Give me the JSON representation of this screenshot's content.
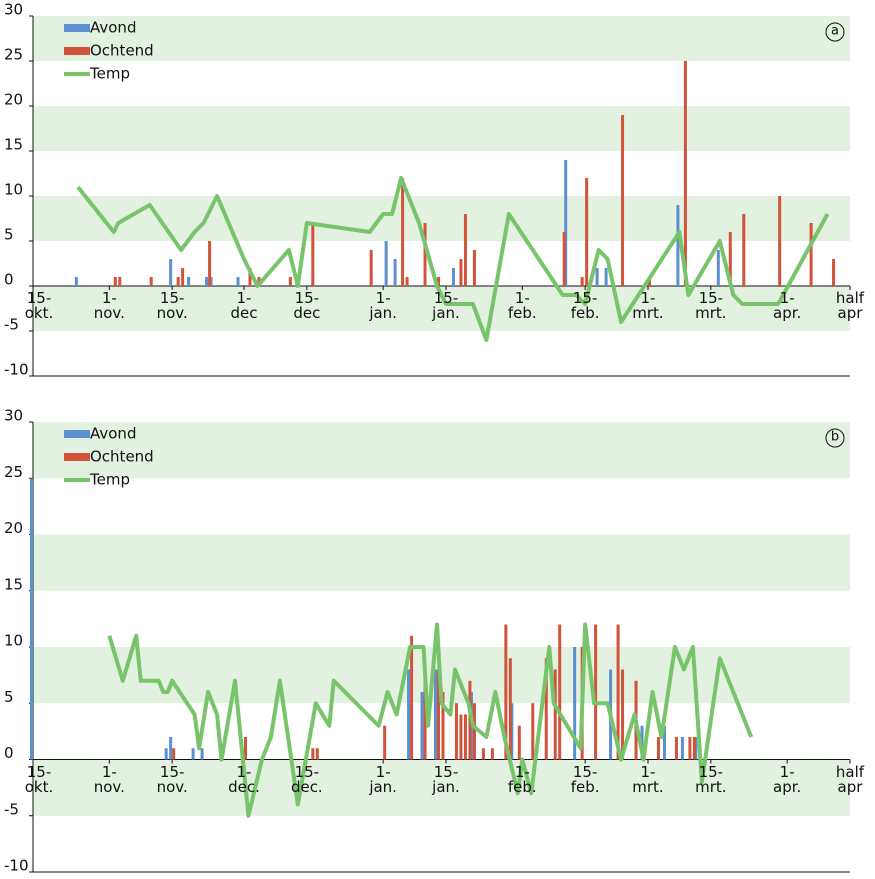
{
  "chart_data": [
    {
      "type": "bar_line",
      "label": "a",
      "xlim": [
        0,
        182
      ],
      "ylim": [
        -10,
        30
      ],
      "yticks": [
        -10,
        -5,
        0,
        5,
        10,
        15,
        20,
        25,
        30
      ],
      "bands": true,
      "legend": "upper left",
      "xticks": [
        {
          "value": 0,
          "label": "15-\nokt."
        },
        {
          "value": 17,
          "label": "1-\nnov."
        },
        {
          "value": 31,
          "label": "15-\nnov."
        },
        {
          "value": 47,
          "label": "1-\ndec"
        },
        {
          "value": 61,
          "label": "15-\ndec"
        },
        {
          "value": 78,
          "label": "1-\njan."
        },
        {
          "value": 92,
          "label": "15-\njan."
        },
        {
          "value": 109,
          "label": "1-\nfeb."
        },
        {
          "value": 123,
          "label": "15-\nfeb."
        },
        {
          "value": 137,
          "label": "1-\nmrt."
        },
        {
          "value": 151,
          "label": "15-\nmrt."
        },
        {
          "value": 168,
          "label": "1-\napr."
        },
        {
          "value": 182,
          "label": "half\napr"
        }
      ],
      "series": [
        {
          "name": "Avond",
          "type": "bar",
          "color": "#5b8fd0",
          "x": [
            10,
            31,
            35,
            39,
            40,
            46,
            79,
            81,
            94,
            119,
            126,
            128,
            144,
            153
          ],
          "values": [
            1,
            3,
            1,
            1,
            1,
            1,
            5,
            3,
            2,
            14,
            2,
            2,
            9,
            4
          ]
        },
        {
          "name": "Ochtend",
          "type": "bar",
          "color": "#d0533a",
          "x": [
            18,
            19,
            26,
            32,
            33,
            39,
            48,
            50,
            57,
            62,
            75,
            82,
            83,
            87,
            90,
            95,
            96,
            98,
            118,
            122,
            123,
            131,
            137,
            145,
            155,
            158,
            166,
            173,
            178
          ],
          "values": [
            1,
            1,
            1,
            1,
            2,
            5,
            2,
            1,
            1,
            7,
            4,
            12,
            1,
            7,
            1,
            3,
            8,
            4,
            6,
            1,
            12,
            19,
            1,
            25,
            6,
            8,
            10,
            7,
            3
          ]
        },
        {
          "name": "Temp",
          "type": "line",
          "color": "#77c46a",
          "x": [
            10,
            18,
            19,
            26,
            33,
            36,
            38,
            41,
            47,
            50,
            57,
            59,
            61,
            75,
            78,
            80,
            82,
            86,
            90,
            92,
            98,
            101,
            106,
            118,
            121,
            123,
            126,
            128,
            131,
            144,
            146,
            153,
            156,
            158,
            166,
            177
          ],
          "values": [
            11,
            6,
            7,
            9,
            4,
            6,
            7,
            10,
            3,
            0,
            4,
            0,
            7,
            6,
            8,
            8,
            12,
            7,
            0,
            -2,
            -2,
            -6,
            8,
            -1,
            -1,
            -2,
            4,
            3,
            -4,
            6,
            -1,
            5,
            -1,
            -2,
            -2,
            8
          ]
        }
      ]
    },
    {
      "type": "bar_line",
      "label": "b",
      "xlim": [
        0,
        182
      ],
      "ylim": [
        -10,
        30
      ],
      "yticks": [
        -10,
        -5,
        0,
        5,
        10,
        15,
        20,
        25,
        30
      ],
      "bands": true,
      "legend": "upper left",
      "xticks": [
        {
          "value": 0,
          "label": "15-\nokt."
        },
        {
          "value": 17,
          "label": "1-\nnov."
        },
        {
          "value": 31,
          "label": "15-\nnov."
        },
        {
          "value": 47,
          "label": "1-\ndec."
        },
        {
          "value": 61,
          "label": "15-\ndec."
        },
        {
          "value": 78,
          "label": "1-\njan."
        },
        {
          "value": 92,
          "label": "15-\njan."
        },
        {
          "value": 109,
          "label": "1-\nfeb."
        },
        {
          "value": 123,
          "label": "15-\nfeb."
        },
        {
          "value": 137,
          "label": "1-\nmrt."
        },
        {
          "value": 151,
          "label": "15-\nmrt."
        },
        {
          "value": 168,
          "label": "1-\napr."
        },
        {
          "value": 182,
          "label": "half\napr"
        }
      ],
      "series": [
        {
          "name": "Avond",
          "type": "bar",
          "color": "#5b8fd0",
          "x": [
            0,
            30,
            31,
            36,
            38,
            84,
            87,
            90,
            98,
            107,
            121,
            129,
            136,
            141,
            145,
            148
          ],
          "values": [
            25,
            1,
            2,
            1,
            1,
            8,
            6,
            8,
            6,
            5,
            10,
            8,
            3,
            3,
            2,
            2
          ]
        },
        {
          "name": "Ochtend",
          "type": "bar",
          "color": "#d0533a",
          "x": [
            31,
            47,
            62,
            63,
            78,
            84,
            87,
            90,
            91,
            94,
            95,
            96,
            97,
            98,
            100,
            102,
            105,
            106,
            108,
            111,
            114,
            116,
            117,
            122,
            125,
            130,
            131,
            134,
            139,
            143,
            146,
            147
          ],
          "values": [
            1,
            2,
            1,
            1,
            3,
            11,
            8,
            8,
            6,
            5,
            4,
            4,
            7,
            5,
            1,
            1,
            12,
            9,
            3,
            5,
            9,
            8,
            12,
            10,
            12,
            12,
            8,
            7,
            2,
            2,
            2,
            2
          ]
        },
        {
          "name": "Temp",
          "type": "line",
          "color": "#77c46a",
          "x": [
            17,
            20,
            23,
            24,
            28,
            29,
            30,
            31,
            36,
            37,
            39,
            41,
            42,
            45,
            48,
            51,
            53,
            55,
            59,
            63,
            66,
            67,
            77,
            79,
            81,
            84,
            87,
            88,
            90,
            91,
            93,
            94,
            96,
            97,
            98,
            101,
            103,
            105,
            108,
            109,
            111,
            115,
            116,
            122,
            123,
            125,
            128,
            131,
            134,
            136,
            138,
            140,
            143,
            145,
            147,
            149,
            153,
            160
          ],
          "values": [
            11,
            7,
            11,
            7,
            7,
            6,
            6,
            7,
            4,
            1,
            6,
            4,
            0,
            7,
            -5,
            0,
            2,
            7,
            -4,
            5,
            3,
            7,
            3,
            6,
            4,
            10,
            10,
            3,
            12,
            5,
            4,
            8,
            6,
            5,
            3,
            2,
            6,
            2,
            -3,
            0,
            -3,
            10,
            5,
            1,
            12,
            5,
            5,
            0,
            4,
            0,
            6,
            2,
            10,
            8,
            10,
            -2,
            9,
            2
          ]
        }
      ]
    }
  ]
}
